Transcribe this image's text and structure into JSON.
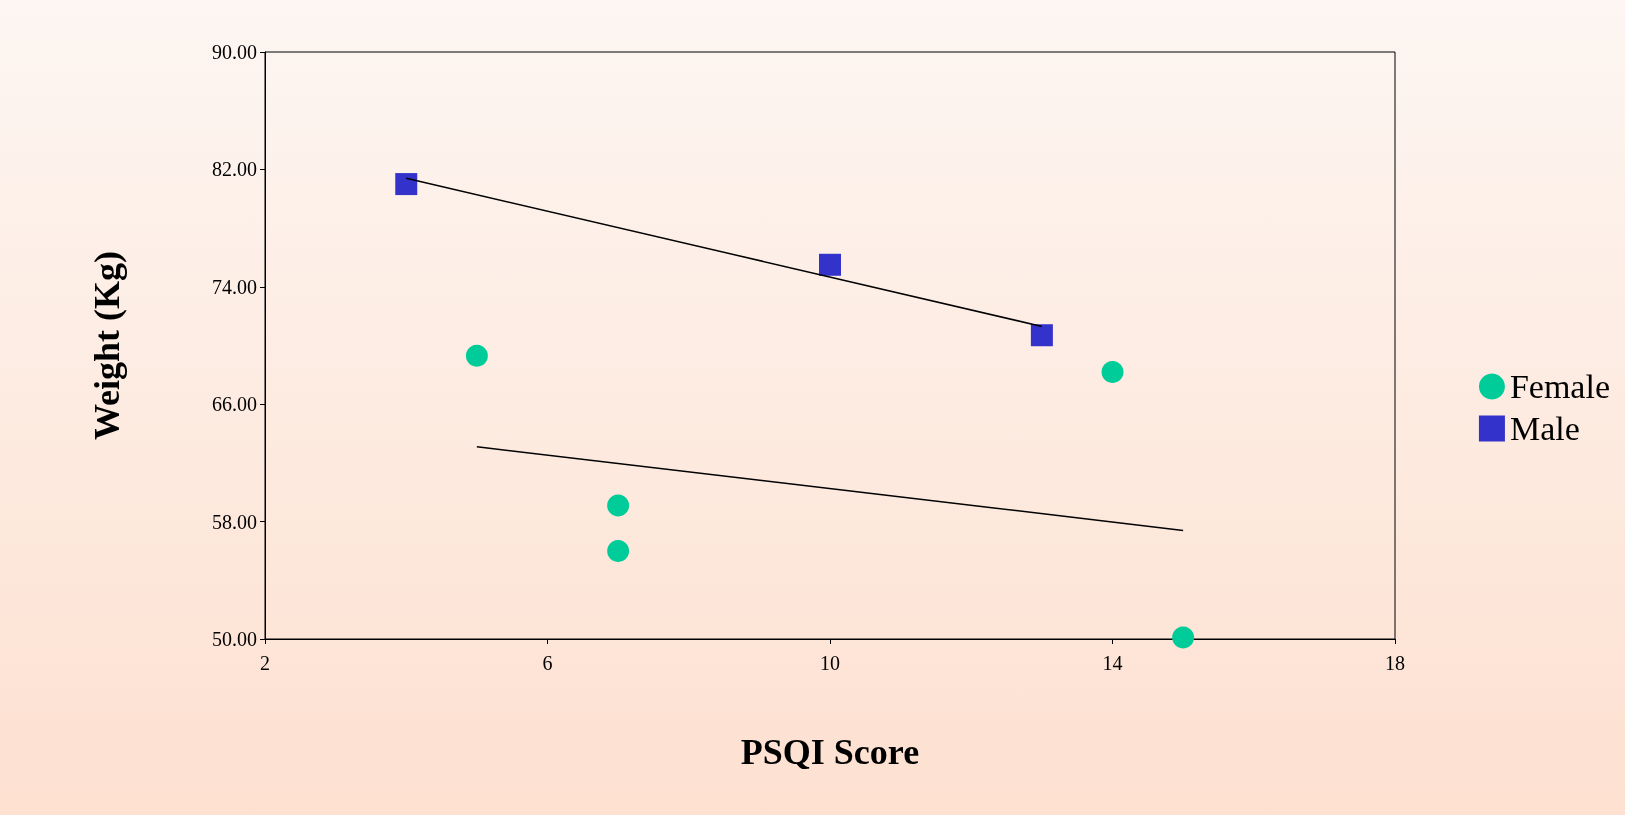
{
  "chart_data": {
    "type": "scatter",
    "xlabel": "PSQI Score",
    "ylabel": "Weight (Kg)",
    "xlim": [
      2,
      18
    ],
    "xticks": [
      2,
      6,
      10,
      14,
      18
    ],
    "ylim": [
      50,
      90
    ],
    "yticks": [
      {
        "value": 50,
        "label": "50.00"
      },
      {
        "value": 58,
        "label": "58.00"
      },
      {
        "value": 66,
        "label": "66.00"
      },
      {
        "value": 74,
        "label": "74.00"
      },
      {
        "value": 82,
        "label": "82.00"
      },
      {
        "value": 90,
        "label": "90.00"
      }
    ],
    "grid": false,
    "legend": "right",
    "series": [
      {
        "name": "Female",
        "color": "#00cc99",
        "marker": "circle",
        "x": [
          5,
          7,
          7,
          14,
          15
        ],
        "values": [
          69.3,
          59.1,
          56.0,
          68.2,
          50.1
        ]
      },
      {
        "name": "Male",
        "color": "#3333cc",
        "marker": "square",
        "x": [
          4,
          10,
          13
        ],
        "values": [
          81.0,
          75.5,
          70.7
        ]
      },
      {
        "type": "line",
        "color": "#000000",
        "marker": "none",
        "line_style": "solid",
        "x": [
          5,
          15
        ],
        "values": [
          63.1,
          57.4
        ]
      },
      {
        "type": "line",
        "color": "#000000",
        "marker": "none",
        "line_style": "solid",
        "x": [
          4,
          13
        ],
        "values": [
          81.4,
          71.3
        ]
      }
    ]
  }
}
